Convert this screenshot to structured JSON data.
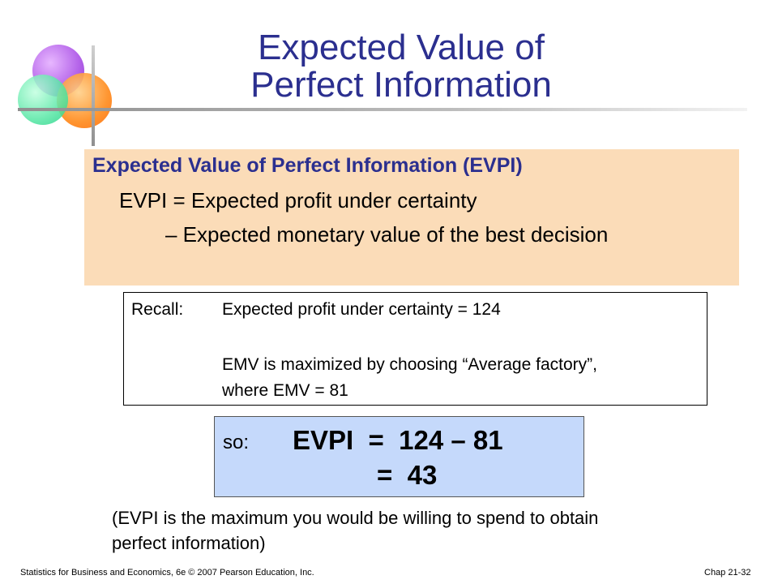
{
  "slide": {
    "title_line1": "Expected Value of",
    "title_line2": "Perfect Information"
  },
  "definition": {
    "heading": "Expected Value of Perfect Information (EVPI)",
    "line1": "EVPI = Expected profit under certainty",
    "line2": "– Expected monetary value of the best decision"
  },
  "recall": {
    "label": "Recall:",
    "line1": "Expected profit under certainty = 124",
    "line2": "EMV is maximized by choosing “Average factory”,",
    "line3": "where EMV = 81"
  },
  "result": {
    "label": "so:",
    "line1": "EVPI  =  124 – 81",
    "line2": "=  43"
  },
  "note": {
    "line1": "(EVPI is the maximum you would be willing to spend to obtain",
    "line2": "perfect information)"
  },
  "footer": {
    "left": "Statistics for Business and Economics, 6e © 2007 Pearson Education, Inc.",
    "right": "Chap 21-32"
  },
  "colors": {
    "title": "#2b2f8f",
    "definition_box": "#fbdcb8",
    "result_box": "#c5d9fb"
  },
  "icons": [
    "overlapping-circles-logo"
  ]
}
